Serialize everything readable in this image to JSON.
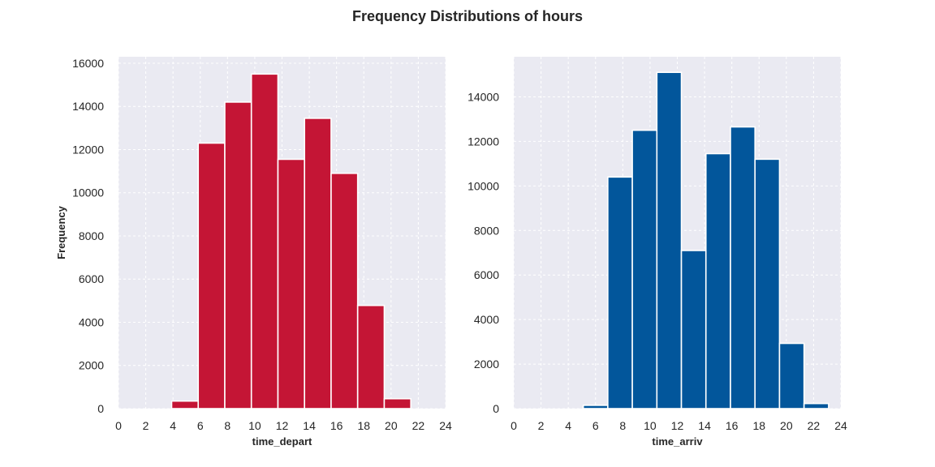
{
  "figure": {
    "title": "Frequency Distributions of hours"
  },
  "chart_data": [
    {
      "type": "bar",
      "title": "",
      "xlabel": "time_depart",
      "ylabel": "Frequency",
      "xlim": [
        0,
        24
      ],
      "ylim": [
        0,
        16300
      ],
      "xticks": [
        "0",
        "2",
        "4",
        "6",
        "8",
        "10",
        "12",
        "14",
        "16",
        "18",
        "20",
        "22",
        "24"
      ],
      "yticks": [
        "0",
        "2000",
        "4000",
        "6000",
        "8000",
        "10000",
        "12000",
        "14000",
        "16000"
      ],
      "grid": true,
      "color": "#c41535",
      "bins": [
        {
          "x0": 3.9,
          "x1": 5.85,
          "value": 350
        },
        {
          "x0": 5.85,
          "x1": 7.8,
          "value": 12300
        },
        {
          "x0": 7.8,
          "x1": 9.75,
          "value": 14200
        },
        {
          "x0": 9.75,
          "x1": 11.7,
          "value": 15500
        },
        {
          "x0": 11.7,
          "x1": 13.65,
          "value": 11550
        },
        {
          "x0": 13.65,
          "x1": 15.6,
          "value": 13450
        },
        {
          "x0": 15.6,
          "x1": 17.55,
          "value": 10900
        },
        {
          "x0": 17.55,
          "x1": 19.5,
          "value": 4780
        },
        {
          "x0": 19.5,
          "x1": 21.45,
          "value": 460
        }
      ]
    },
    {
      "type": "bar",
      "title": "",
      "xlabel": "time_arriv",
      "ylabel": "",
      "xlim": [
        0,
        24
      ],
      "ylim": [
        0,
        15800
      ],
      "xticks": [
        "0",
        "2",
        "4",
        "6",
        "8",
        "10",
        "12",
        "14",
        "16",
        "18",
        "20",
        "22",
        "24"
      ],
      "yticks": [
        "0",
        "2000",
        "4000",
        "6000",
        "8000",
        "10000",
        "12000",
        "14000"
      ],
      "grid": true,
      "color": "#02569b",
      "bins": [
        {
          "x0": 5.1,
          "x1": 6.9,
          "value": 150
        },
        {
          "x0": 6.9,
          "x1": 8.7,
          "value": 10400
        },
        {
          "x0": 8.7,
          "x1": 10.5,
          "value": 12500
        },
        {
          "x0": 10.5,
          "x1": 12.3,
          "value": 15100
        },
        {
          "x0": 12.3,
          "x1": 14.1,
          "value": 7100
        },
        {
          "x0": 14.1,
          "x1": 15.9,
          "value": 11450
        },
        {
          "x0": 15.9,
          "x1": 17.7,
          "value": 12650
        },
        {
          "x0": 17.7,
          "x1": 19.5,
          "value": 11200
        },
        {
          "x0": 19.5,
          "x1": 21.3,
          "value": 2930
        },
        {
          "x0": 21.3,
          "x1": 23.1,
          "value": 230
        }
      ]
    }
  ]
}
